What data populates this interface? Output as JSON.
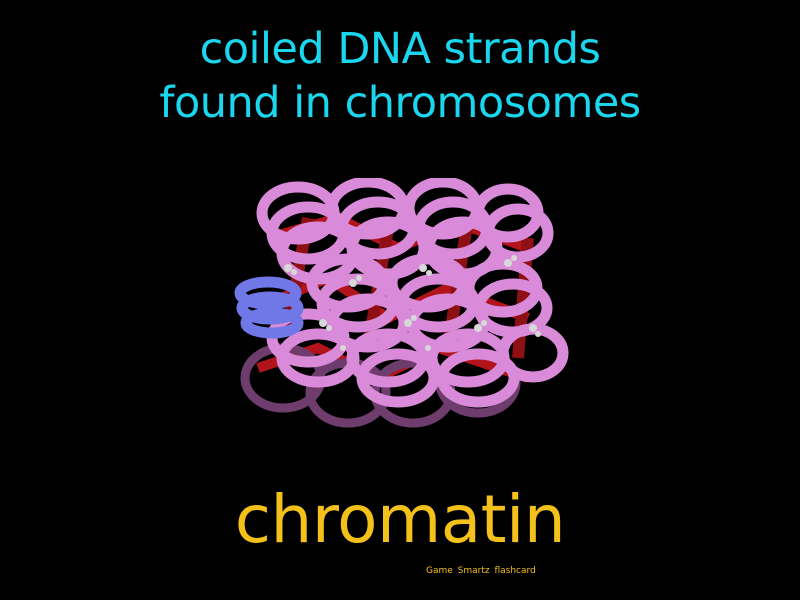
{
  "definition": {
    "line1": "coiled DNA strands",
    "line2": "found in chromosomes"
  },
  "term": "chromatin",
  "brand": "Game Smartz flashcard",
  "colors": {
    "background": "#000000",
    "definition_text": "#1ad6ee",
    "term_text": "#f4c01a",
    "brand_text": "#f4c01a",
    "coil_pink": "#d98ad9",
    "coil_blue": "#6f78e6",
    "linker_red": "#b3141b"
  },
  "illustration": {
    "subject": "chromatin-fiber-coils"
  }
}
